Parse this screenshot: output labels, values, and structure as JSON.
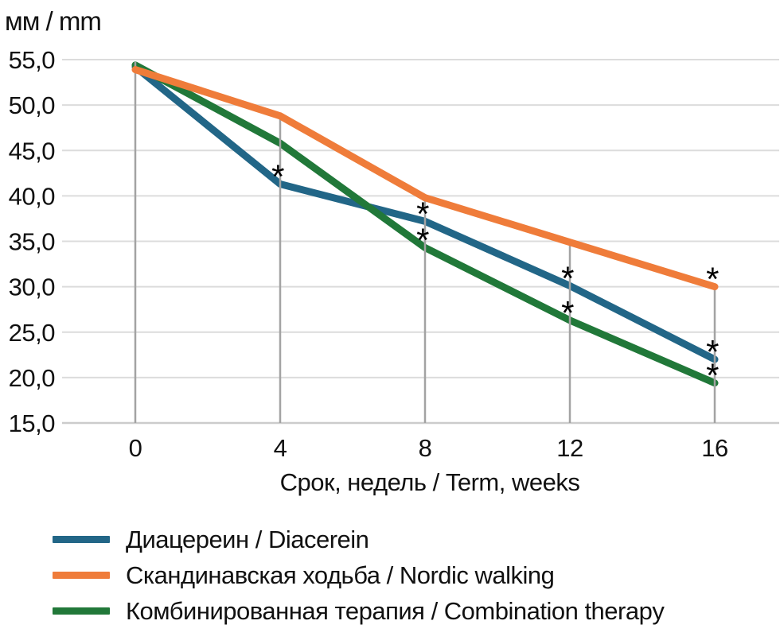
{
  "chart_data": {
    "type": "line",
    "title": "",
    "unit_label": "мм / mm",
    "xlabel": "Срок, недель / Term, weeks",
    "ylabel": "мм / mm",
    "x": [
      0,
      4,
      8,
      12,
      16
    ],
    "x_tick_labels": [
      "0",
      "4",
      "8",
      "12",
      "16"
    ],
    "y_ticks": [
      55,
      50,
      45,
      40,
      35,
      30,
      25,
      20,
      15
    ],
    "y_tick_labels": [
      "55,0",
      "50,0",
      "45,0",
      "40,0",
      "35,0",
      "30,0",
      "25,0",
      "20,0",
      "15,0"
    ],
    "ylim": [
      15,
      55
    ],
    "xlim": [
      0,
      16
    ],
    "grid": true,
    "legend_position": "bottom",
    "annotation_symbol": "*",
    "series": [
      {
        "name": "diacerein",
        "label": "Диацереин / Diacerein",
        "color": "#226687",
        "values": [
          54.2,
          41.3,
          37.2,
          30.1,
          22.0
        ],
        "significant_weeks": [
          4,
          8,
          12,
          16
        ]
      },
      {
        "name": "nordic-walking",
        "label": "Скандинавская ходьба / Nordic walking",
        "color": "#EF7C3A",
        "values": [
          53.9,
          48.8,
          39.8,
          34.9,
          30.0
        ],
        "significant_weeks": [
          16
        ]
      },
      {
        "name": "combination-therapy",
        "label": "Комбинированная терапия / Combination therapy",
        "color": "#217839",
        "values": [
          54.4,
          45.8,
          34.3,
          26.3,
          19.4
        ],
        "significant_weeks": [
          8,
          12,
          16
        ]
      }
    ]
  },
  "colors": {
    "grid_line": "#dcdcdc",
    "axis_line": "#cccccc",
    "drop_line": "#a3a3a3",
    "text": "#111111",
    "annotation": "#000000",
    "background": "#ffffff"
  }
}
